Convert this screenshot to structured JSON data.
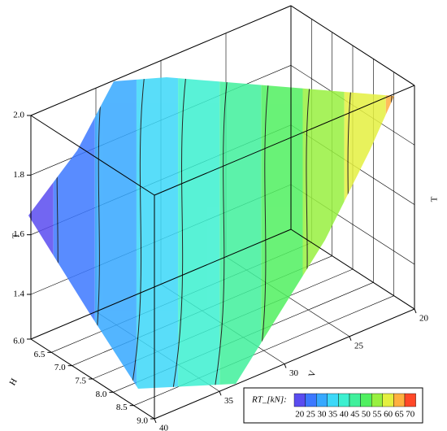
{
  "chart_data": {
    "type": "surface3d",
    "axis_labels": {
      "h": "H",
      "v": "V",
      "t_left": "T",
      "t_right": "T"
    },
    "hlim": [
      6,
      9
    ],
    "hticks": [
      {
        "value": 6,
        "label": "6.0"
      },
      6.5,
      {
        "value": 7,
        "label": "7.0"
      },
      7.5,
      {
        "value": 8,
        "label": "8.0"
      },
      8.5,
      {
        "value": 9,
        "label": "9.0"
      }
    ],
    "vlim": [
      20,
      40
    ],
    "vticks": [
      20,
      25,
      30,
      35,
      40
    ],
    "tlim": [
      1.25,
      2.0
    ],
    "tticks": [
      1.4,
      1.6,
      1.8,
      {
        "value": 2,
        "label": "2.0"
      }
    ],
    "grid": true,
    "legend": {
      "title": "RT_[kN]:",
      "levels": [
        20,
        25,
        30,
        35,
        40,
        45,
        50,
        55,
        60,
        65,
        70
      ],
      "colors": [
        "#5a4cf0",
        "#3c78ff",
        "#36a8ff",
        "#3cd8f8",
        "#3cf0d0",
        "#40f09c",
        "#50f060",
        "#98f040",
        "#e4f040",
        "#ffb040",
        "#ff4828"
      ]
    }
  }
}
